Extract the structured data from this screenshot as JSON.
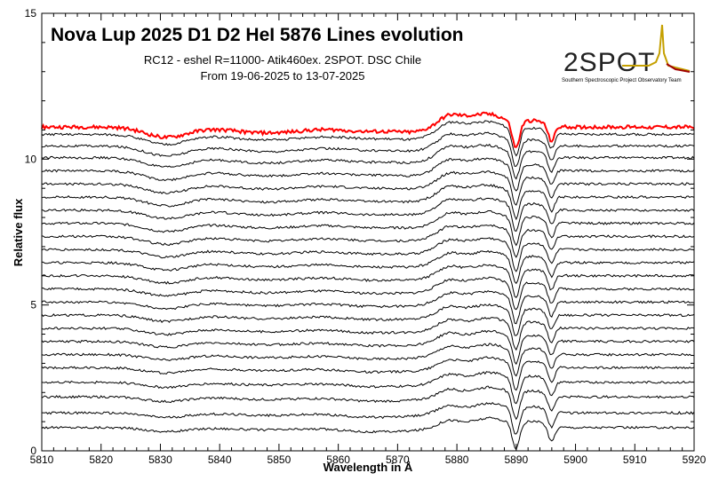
{
  "chart_data": {
    "type": "line",
    "title": "Nova Lup 2025 D1 D2 HeI 5876 Lines evolution",
    "subtitle_lines": [
      "RC12 - eshel R=11000- Atik460ex. 2SPOT. DSC Chile",
      "From 19-06-2025 to 13-07-2025"
    ],
    "xlabel": "Wavelength in Å",
    "ylabel": "Relative flux",
    "xlim": [
      5810,
      5920
    ],
    "ylim": [
      0,
      15
    ],
    "x_ticks": [
      "5810",
      "5820",
      "5830",
      "5840",
      "5850",
      "5860",
      "5870",
      "5880",
      "5890",
      "5900",
      "5910",
      "5920"
    ],
    "y_ticks": [
      "0",
      "5",
      "10",
      "15"
    ],
    "grid": false,
    "legend": "none",
    "highlight_color": "#ff0000",
    "line_color": "#000000",
    "series": [
      {
        "offset": 0.8
      },
      {
        "offset": 1.3
      },
      {
        "offset": 1.85
      },
      {
        "offset": 2.35
      },
      {
        "offset": 2.85
      },
      {
        "offset": 3.3
      },
      {
        "offset": 3.75
      },
      {
        "offset": 4.2
      },
      {
        "offset": 4.65
      },
      {
        "offset": 5.1
      },
      {
        "offset": 5.55
      },
      {
        "offset": 6.0
      },
      {
        "offset": 6.45
      },
      {
        "offset": 6.9
      },
      {
        "offset": 7.35
      },
      {
        "offset": 7.8
      },
      {
        "offset": 8.25
      },
      {
        "offset": 8.7
      },
      {
        "offset": 9.15
      },
      {
        "offset": 9.6
      },
      {
        "offset": 10.05
      },
      {
        "offset": 10.45
      },
      {
        "offset": 10.85
      },
      {
        "offset": 11.1,
        "highlight": true
      }
    ],
    "line_features_x": [
      5876,
      5890,
      5896
    ]
  },
  "logo": {
    "text": "2SPOT",
    "tagline": "Southern Spectroscopic Project Observatory Team"
  }
}
